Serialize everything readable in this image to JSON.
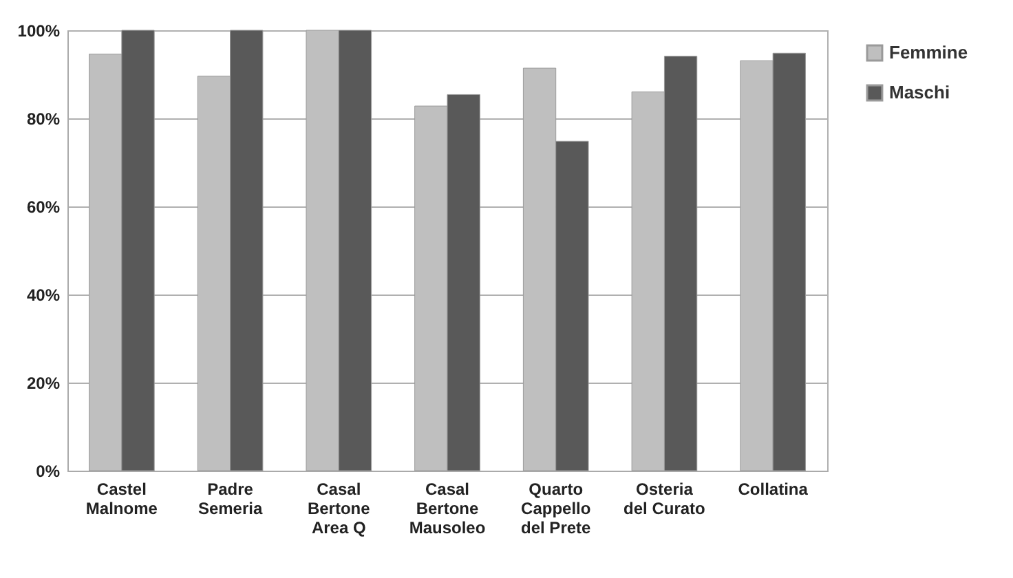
{
  "chart_data": {
    "type": "bar",
    "categories": [
      "Castel Malnome",
      "Padre Semeria",
      "Casal Bertone Area Q",
      "Casal Bertone Mausoleo",
      "Quarto Cappello del Prete",
      "Osteria del Curato",
      "Collatina"
    ],
    "series": [
      {
        "name": "Femmine",
        "color": "#bfbfbf",
        "values": [
          94.6,
          89.6,
          100,
          82.8,
          91.4,
          86.0,
          93.1
        ]
      },
      {
        "name": "Maschi",
        "color": "#595959",
        "values": [
          100,
          100,
          100,
          85.4,
          74.8,
          94.1,
          94.8
        ]
      }
    ],
    "ylim": [
      0,
      100
    ],
    "yticks": [
      {
        "value": 0,
        "label": "0%"
      },
      {
        "value": 20,
        "label": "20%"
      },
      {
        "value": 40,
        "label": "40%"
      },
      {
        "value": 60,
        "label": "60%"
      },
      {
        "value": 80,
        "label": "80%"
      },
      {
        "value": 100,
        "label": "100%"
      }
    ],
    "grid": "y",
    "legend": "right"
  }
}
